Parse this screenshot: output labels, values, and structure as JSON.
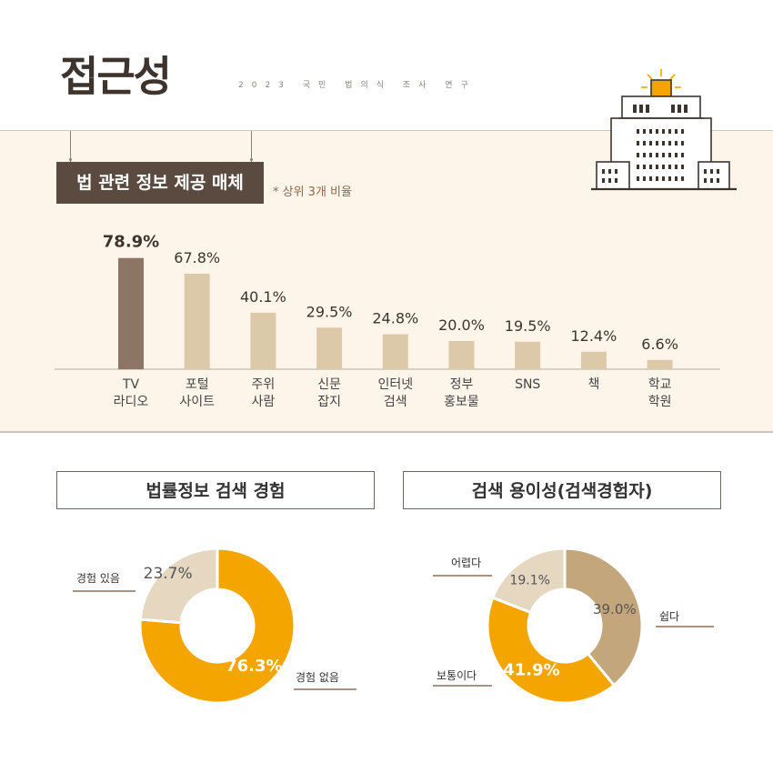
{
  "header": {
    "title": "접근성",
    "subtitle": "2023 국민 법의식 조사 연구"
  },
  "bar_section": {
    "title": "법 관련 정보 제공 매체",
    "note": "* 상위 3개 비율"
  },
  "donut_section": {
    "left_title": "법률정보 검색 경험",
    "right_title": "검색 용이성(검색경험자)"
  },
  "colors": {
    "bar_highlight": "#8c7565",
    "bar_default": "#dcc9aa",
    "orange": "#f5a500",
    "beige_light": "#e5d7c0",
    "tan": "#c4a67c",
    "dark_brown": "#5b4a40"
  },
  "icons": [
    "courthouse-building-icon"
  ],
  "chart_data": [
    {
      "type": "bar",
      "title": "법 관련 정보 제공 매체",
      "categories": [
        "TV\n라디오",
        "포털\n사이트",
        "주위\n사람",
        "신문\n잡지",
        "인터넷\n검색",
        "정부\n홍보물",
        "SNS",
        "책",
        "학교\n학원"
      ],
      "values": [
        78.9,
        67.8,
        40.1,
        29.5,
        24.8,
        20.0,
        19.5,
        12.4,
        6.6
      ],
      "value_labels": [
        "78.9%",
        "67.8%",
        "40.1%",
        "29.5%",
        "24.8%",
        "20.0%",
        "19.5%",
        "12.4%",
        "6.6%"
      ],
      "highlight_index": 0,
      "ylim": [
        0,
        100
      ]
    },
    {
      "type": "pie",
      "title": "법률정보 검색 경험",
      "labels": [
        "경험 없음",
        "경험 있음"
      ],
      "values": [
        76.3,
        23.7
      ],
      "value_labels": [
        "76.3%",
        "23.7%"
      ],
      "colors": [
        "#f5a500",
        "#e5d7c0"
      ]
    },
    {
      "type": "pie",
      "title": "검색 용이성(검색경험자)",
      "labels": [
        "쉽다",
        "보통이다",
        "어렵다"
      ],
      "values": [
        39.0,
        41.9,
        19.1
      ],
      "value_labels": [
        "39.0%",
        "41.9%",
        "19.1%"
      ],
      "colors": [
        "#c4a67c",
        "#f5a500",
        "#e5d7c0"
      ]
    }
  ]
}
